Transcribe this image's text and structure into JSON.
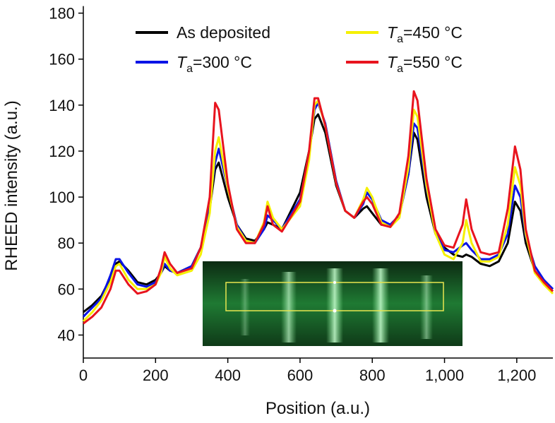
{
  "chart_data": {
    "type": "line",
    "x_label": "Position (a.u.)",
    "y_label": "RHEED intensity (a.u.)",
    "xlim": [
      0,
      1300
    ],
    "ylim": [
      30,
      180
    ],
    "xticks": [
      0,
      200,
      400,
      600,
      800,
      {
        "value": 1000,
        "label": "1,000"
      },
      {
        "value": 1200,
        "label": "1,200"
      }
    ],
    "yticks": [
      40,
      60,
      80,
      100,
      120,
      140,
      160,
      180
    ],
    "x": [
      0,
      25,
      50,
      75,
      90,
      100,
      125,
      150,
      175,
      200,
      215,
      225,
      240,
      260,
      300,
      325,
      350,
      365,
      375,
      400,
      425,
      450,
      475,
      500,
      510,
      525,
      550,
      600,
      625,
      640,
      650,
      670,
      700,
      725,
      750,
      775,
      785,
      800,
      825,
      850,
      875,
      900,
      915,
      925,
      950,
      975,
      1000,
      1025,
      1050,
      1060,
      1075,
      1100,
      1125,
      1150,
      1175,
      1195,
      1210,
      1225,
      1250,
      1275,
      1300
    ],
    "series": [
      {
        "name": "As deposited",
        "color": "#000000",
        "values": [
          50,
          53,
          57,
          65,
          71,
          72,
          68,
          63,
          62,
          64,
          67,
          70,
          68,
          67,
          70,
          78,
          95,
          112,
          115,
          100,
          88,
          82,
          81,
          86,
          89,
          88,
          86,
          102,
          120,
          134,
          136,
          128,
          105,
          94,
          91,
          95,
          96,
          93,
          88,
          88,
          92,
          110,
          128,
          125,
          100,
          84,
          78,
          75,
          74,
          75,
          74,
          71,
          70,
          72,
          80,
          98,
          94,
          80,
          68,
          63,
          60
        ]
      },
      {
        "name": "Ta=300 °C",
        "color": "#0a14e6",
        "values": [
          48,
          52,
          56,
          66,
          73,
          73,
          67,
          62,
          61,
          63,
          67,
          71,
          68,
          67,
          70,
          78,
          97,
          115,
          121,
          104,
          88,
          81,
          80,
          86,
          92,
          90,
          86,
          99,
          118,
          138,
          141,
          132,
          107,
          94,
          91,
          97,
          102,
          99,
          90,
          88,
          92,
          110,
          132,
          130,
          104,
          85,
          77,
          76,
          79,
          80,
          77,
          73,
          73,
          75,
          84,
          105,
          100,
          83,
          70,
          64,
          60
        ]
      },
      {
        "name": "Ta=450 °C",
        "color": "#f5f000",
        "values": [
          46,
          50,
          55,
          63,
          70,
          71,
          64,
          60,
          60,
          62,
          67,
          74,
          69,
          66,
          68,
          75,
          93,
          120,
          126,
          104,
          87,
          81,
          80,
          89,
          98,
          91,
          86,
          96,
          116,
          140,
          142,
          131,
          106,
          94,
          91,
          99,
          104,
          100,
          89,
          87,
          91,
          113,
          138,
          135,
          105,
          84,
          75,
          73,
          80,
          90,
          80,
          72,
          72,
          74,
          88,
          113,
          105,
          84,
          67,
          62,
          58
        ]
      },
      {
        "name": "Ta=550 °C",
        "color": "#e8141e",
        "values": [
          45,
          48,
          52,
          60,
          68,
          68,
          62,
          58,
          59,
          62,
          69,
          76,
          71,
          67,
          69,
          78,
          100,
          141,
          138,
          106,
          86,
          80,
          80,
          88,
          96,
          88,
          85,
          98,
          120,
          143,
          143,
          131,
          106,
          94,
          91,
          98,
          100,
          97,
          88,
          87,
          93,
          118,
          146,
          142,
          108,
          86,
          79,
          78,
          88,
          99,
          86,
          76,
          75,
          76,
          95,
          122,
          112,
          86,
          68,
          63,
          59
        ]
      }
    ]
  }
}
